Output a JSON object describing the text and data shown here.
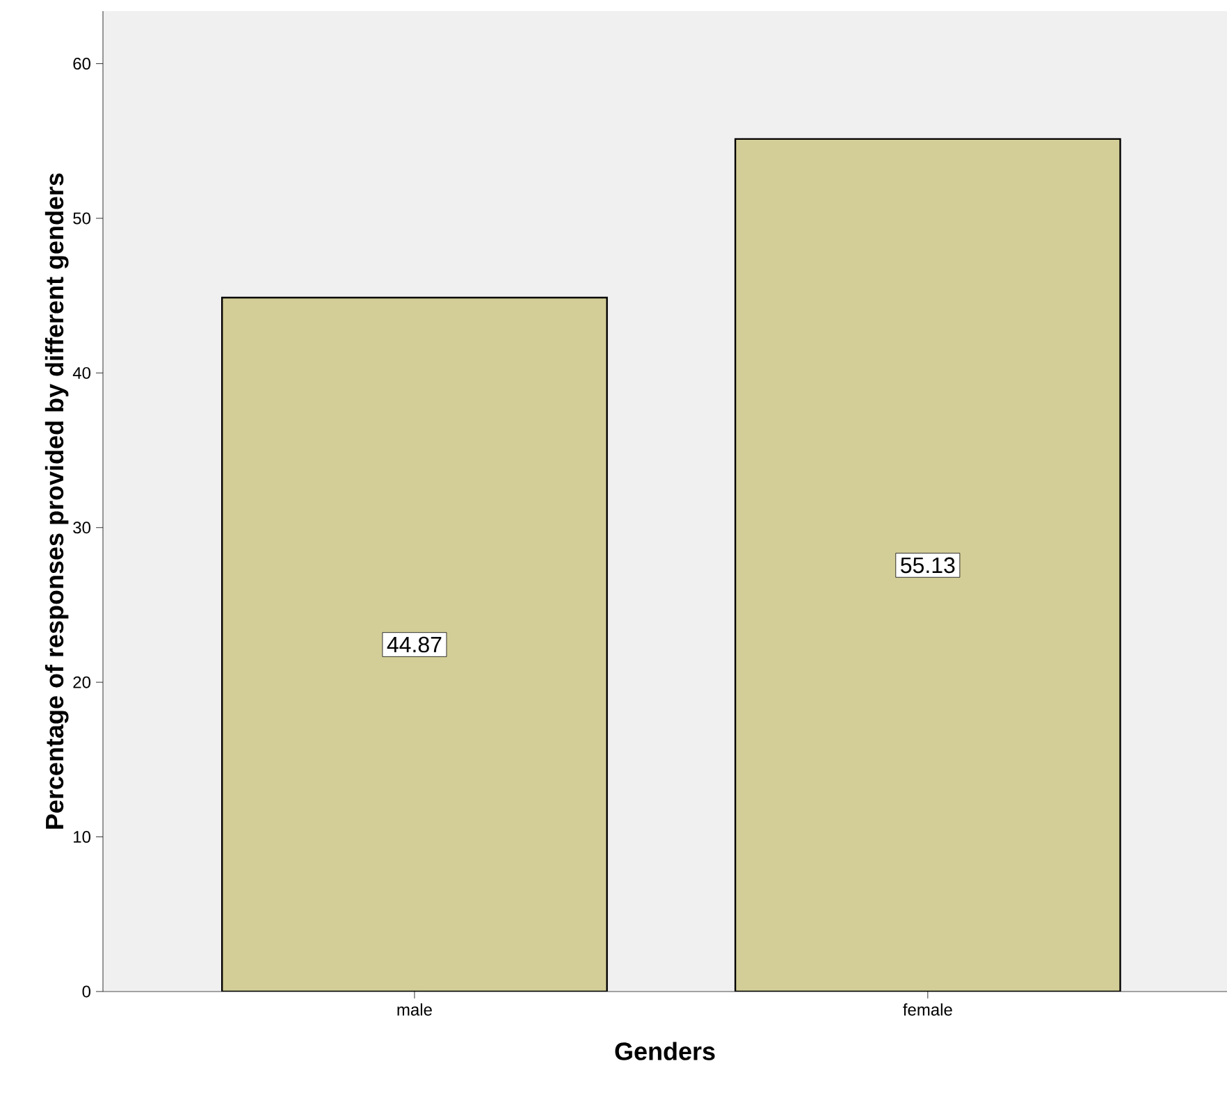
{
  "chart_data": {
    "type": "bar",
    "xlabel": "Genders",
    "ylabel": "Percentage of responses provided by different genders",
    "categories": [
      "male",
      "female"
    ],
    "values": [
      44.87,
      55.13
    ],
    "color": "#d3ce97",
    "ylim": [
      0,
      63.4
    ],
    "yticks": [
      0,
      10,
      20,
      30,
      40,
      50,
      60
    ],
    "data_labels": true,
    "grid": false
  }
}
